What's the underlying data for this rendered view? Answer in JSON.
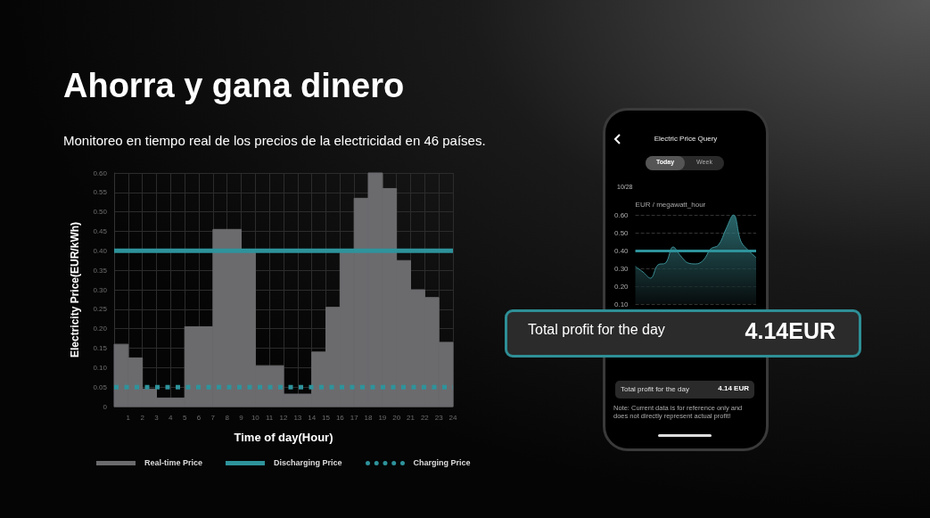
{
  "chart_data": [
    {
      "type": "histogram",
      "title": "Ahorra y gana dinero",
      "subtitle": "Monitoreo en tiempo real de los precios de la electricidad en 46 países.",
      "xlabel": "Time of day(Hour)",
      "ylabel": "Electricity Price(EUR/kWh)",
      "bins": [
        0,
        1,
        2,
        3,
        5,
        7,
        9,
        10,
        12,
        14,
        15,
        16,
        17,
        18,
        19,
        20,
        21,
        22,
        23,
        24
      ],
      "series": [
        {
          "name": "Real-time Price",
          "color": "#6b6b6e",
          "values": [
            0.16,
            0.125,
            0.045,
            0.022,
            0.205,
            0.455,
            0.395,
            0.105,
            0.032,
            0.14,
            0.255,
            0.395,
            0.535,
            0.6,
            0.56,
            0.375,
            0.3,
            0.28,
            0.165
          ]
        }
      ],
      "xlim": [
        0,
        24
      ],
      "xticks": [
        1,
        2,
        3,
        4,
        5,
        6,
        7,
        8,
        9,
        10,
        11,
        12,
        13,
        14,
        15,
        16,
        17,
        18,
        19,
        20,
        21,
        22,
        23,
        24
      ],
      "ylim": [
        0,
        0.6
      ],
      "yticks": [
        0,
        0.05,
        {
          "value": 0.1,
          "label": "0.10"
        },
        0.15,
        {
          "value": 0.2,
          "label": "0.20"
        },
        0.25,
        {
          "value": 0.3,
          "label": "0.30"
        },
        0.35,
        {
          "value": 0.4,
          "label": "0.40"
        },
        0.45,
        {
          "value": 0.5,
          "label": "0.50"
        },
        0.55,
        {
          "value": 0.6,
          "label": "0.60"
        }
      ],
      "ref_lines": [
        {
          "axis": "y",
          "value": 0.4,
          "label": "Discharging Price",
          "color": "#2e939b",
          "line_style": "solid"
        },
        {
          "axis": "y",
          "value": 0.05,
          "label": "Charging Price",
          "color": "#2e939b",
          "line_style": "dotted"
        }
      ],
      "grid": true,
      "legend": "bottom"
    },
    {
      "type": "area",
      "title": "Electric Price Query",
      "ylabel": "EUR / megawatt_hour",
      "categories": [
        null,
        null,
        null,
        null,
        null,
        null,
        null,
        null,
        null,
        null,
        null,
        null,
        null,
        null,
        null,
        null,
        null
      ],
      "series": [
        {
          "color": "#3a8f95",
          "values": [
            0.31,
            0.28,
            0.245,
            0.32,
            0.33,
            0.42,
            0.37,
            0.33,
            0.325,
            0.345,
            0.41,
            0.43,
            0.52,
            0.6,
            0.45,
            0.4,
            0.36
          ]
        }
      ],
      "ylim": [
        0.1,
        0.6
      ],
      "yticks": [
        {
          "value": 0.1,
          "label": "0.10"
        },
        {
          "value": 0.2,
          "label": "0.20"
        },
        {
          "value": 0.3,
          "label": "0.30"
        },
        {
          "value": 0.4,
          "label": "0.40"
        },
        {
          "value": 0.5,
          "label": "0.50"
        },
        {
          "value": 0.6,
          "label": "0.60"
        }
      ],
      "ref_lines": [
        {
          "axis": "y",
          "value": 0.4,
          "color": "#2e939b"
        }
      ],
      "grid": "y",
      "annotations": [
        "Today",
        "Week",
        "10/28",
        "Total profit for the day",
        "4.14EUR",
        "Total profit for the day",
        "4.14 EUR",
        "Note: Current data is for reference only and does not directly represent actual profit!"
      ]
    }
  ]
}
